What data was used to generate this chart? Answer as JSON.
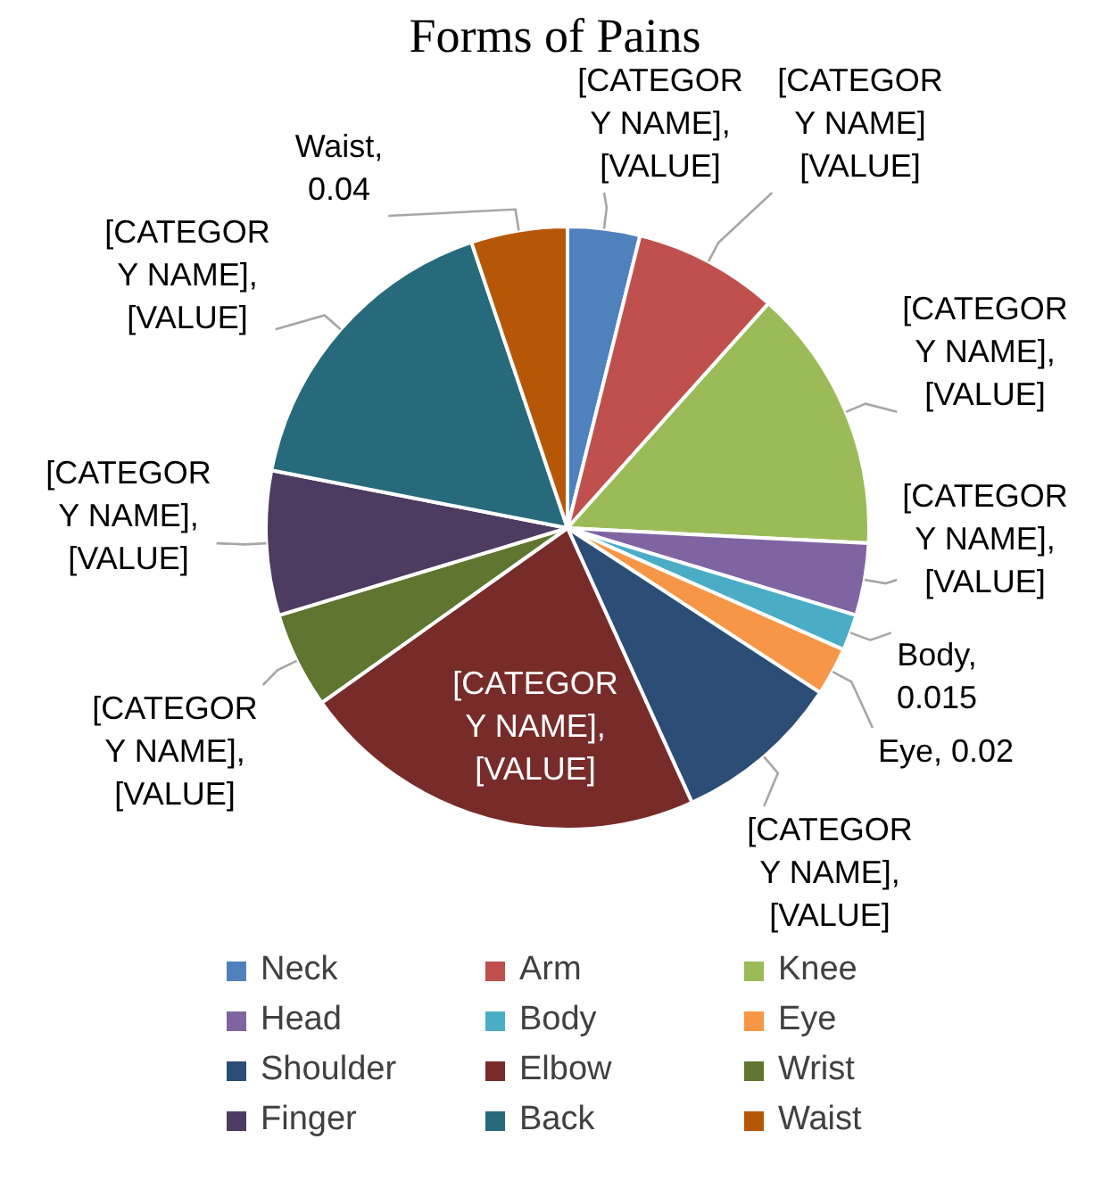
{
  "chart_data": {
    "type": "pie",
    "title": "Forms of Pains",
    "categories": [
      "Neck",
      "Arm",
      "Knee",
      "Head",
      "Body",
      "Eye",
      "Shoulder",
      "Elbow",
      "Wrist",
      "Finger",
      "Back",
      "Waist"
    ],
    "values": [
      0.03,
      0.06,
      0.11,
      0.03,
      0.015,
      0.02,
      0.07,
      0.17,
      0.04,
      0.06,
      0.13,
      0.04
    ],
    "colors": [
      "#4f81bd",
      "#c0504d",
      "#9bbb59",
      "#8064a2",
      "#4bacc6",
      "#f79646",
      "#2c4d75",
      "#772c2a",
      "#5f7530",
      "#4d3b62",
      "#276a7c",
      "#b65708"
    ],
    "value_labels": [
      "[CATEGORY NAME], [VALUE]",
      "[CATEGORY NAME] [VALUE]",
      "[CATEGORY NAME], [VALUE]",
      "[CATEGORY NAME], [VALUE]",
      "Body, 0.015",
      "Eye, 0.02",
      "[CATEGORY NAME], [VALUE]",
      "[CATEGORY NAME], [VALUE]",
      "[CATEGORY NAME], [VALUE]",
      "[CATEGORY NAME], [VALUE]",
      "[CATEGORY NAME], [VALUE]",
      "Waist, 0.04"
    ],
    "legend": "bottom"
  }
}
